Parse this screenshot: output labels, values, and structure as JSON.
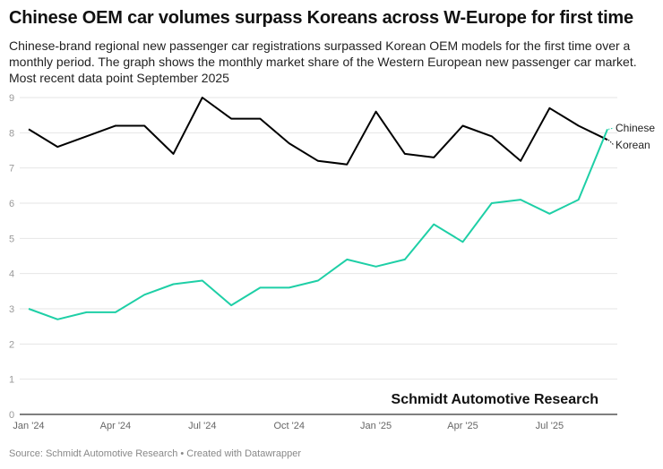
{
  "title": "Chinese OEM car volumes surpass Koreans across W-Europe for first time",
  "subtitle": "Chinese-brand regional new passenger car registrations surpassed Korean OEM models for the first time over a monthly period. The graph shows the monthly market share of the Western European new passenger car market. Most recent data point September 2025",
  "watermark": "Schmidt Automotive Research",
  "source": "Source: Schmidt Automotive Research • Created with Datawrapper",
  "colors": {
    "korean": "#000000",
    "chinese": "#1ecfa6",
    "grid": "#e6e6e6",
    "axis": "#555555"
  },
  "chart_data": {
    "type": "line",
    "title": "Chinese OEM car volumes surpass Koreans across W-Europe for first time",
    "xlabel": "",
    "ylabel": "",
    "ylim": [
      0,
      9
    ],
    "yticks": [
      0,
      1,
      2,
      3,
      4,
      5,
      6,
      7,
      8,
      9
    ],
    "grid": true,
    "legend": "inline-right",
    "x": [
      "Jan '24",
      "Feb '24",
      "Mar '24",
      "Apr '24",
      "May '24",
      "Jun '24",
      "Jul '24",
      "Aug '24",
      "Sep '24",
      "Oct '24",
      "Nov '24",
      "Dec '24",
      "Jan '25",
      "Feb '25",
      "Mar '25",
      "Apr '25",
      "May '25",
      "Jun '25",
      "Jul '25",
      "Aug '25",
      "Sep '25"
    ],
    "xtick_labels": [
      {
        "index": 0,
        "label": "Jan '24"
      },
      {
        "index": 3,
        "label": "Apr '24"
      },
      {
        "index": 6,
        "label": "Jul '24"
      },
      {
        "index": 9,
        "label": "Oct '24"
      },
      {
        "index": 12,
        "label": "Jan '25"
      },
      {
        "index": 15,
        "label": "Apr '25"
      },
      {
        "index": 18,
        "label": "Jul '25"
      }
    ],
    "series": [
      {
        "name": "Korean",
        "color": "#000000",
        "values": [
          8.1,
          7.6,
          7.9,
          8.2,
          8.2,
          7.4,
          9.0,
          8.4,
          8.4,
          7.7,
          7.2,
          7.1,
          8.6,
          7.4,
          7.3,
          8.2,
          7.9,
          7.2,
          8.7,
          8.2,
          7.8
        ]
      },
      {
        "name": "Chinese",
        "color": "#1ecfa6",
        "values": [
          3.0,
          2.7,
          2.9,
          2.9,
          3.4,
          3.7,
          3.8,
          3.1,
          3.6,
          3.6,
          3.8,
          4.4,
          4.2,
          4.4,
          5.4,
          4.9,
          6.0,
          6.1,
          5.7,
          6.1,
          8.1
        ]
      }
    ]
  }
}
